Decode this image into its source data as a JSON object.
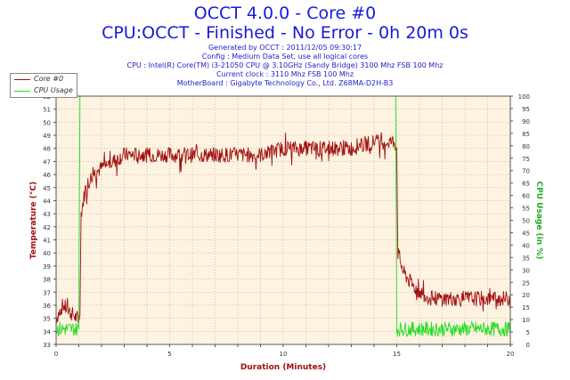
{
  "header": {
    "title": "OCCT 4.0.0 - Core #0",
    "subtitle": "CPU:OCCT - Finished - No Error - 0h 20m 0s",
    "info_lines": [
      "Generated by OCCT : 2011/12/05 09:30:17",
      "Config : Medium Data Set, use all logical cores",
      "CPU : Intel(R) Core(TM) i3-21050 CPU @ 3.10GHz (Sandy Bridge) 3100 Mhz FSB 100 Mhz",
      "Current clock : 3110 Mhz FSB 100 Mhz",
      "MotherBoard : Gigabyte Technology Co., Ltd. Z68MA-D2H-B3"
    ]
  },
  "colors": {
    "temperature": "#a01010",
    "cpu_usage": "#22dd22",
    "plot_bg": "#fdf3e0",
    "grid": "#b0a890",
    "axis_label": "#a01010",
    "usage_label": "#22aa22"
  },
  "chart_data": {
    "type": "line",
    "title": "OCCT 4.0.0 - Core #0",
    "xlabel": "Duration (Minutes)",
    "ylabel": "Temperature (°C)",
    "y2label": "CPU Usage (in %)",
    "xlim": [
      0,
      20
    ],
    "ylim": [
      33,
      52
    ],
    "y2lim": [
      0,
      100
    ],
    "x_ticks": [
      0,
      5,
      10,
      15,
      20
    ],
    "y_ticks": [
      33,
      34,
      35,
      36,
      37,
      38,
      39,
      40,
      41,
      42,
      43,
      44,
      45,
      46,
      47,
      48,
      49,
      50,
      51,
      52
    ],
    "y2_ticks": [
      0,
      5,
      10,
      15,
      20,
      25,
      30,
      35,
      40,
      45,
      50,
      55,
      60,
      65,
      70,
      75,
      80,
      85,
      90,
      95,
      100
    ],
    "legend_position": "top-left",
    "series": [
      {
        "name": "Core #0",
        "axis": "left",
        "x": [
          0,
          0.3,
          0.6,
          0.9,
          1.05,
          1.1,
          1.3,
          1.6,
          2.0,
          2.5,
          3.0,
          3.5,
          4.0,
          5.0,
          6.0,
          7.0,
          8.0,
          9.0,
          10.0,
          11.0,
          12.0,
          13.0,
          14.0,
          14.9,
          15.0,
          15.05,
          15.3,
          15.7,
          16.0,
          16.5,
          17.0,
          18.0,
          19.0,
          20.0
        ],
        "values": [
          35,
          36,
          35.5,
          35,
          35,
          43,
          45,
          46,
          46.5,
          47,
          47.5,
          47.5,
          47.5,
          47.5,
          47.5,
          47.5,
          47.5,
          47.5,
          48,
          48,
          48,
          48,
          48.5,
          48.5,
          48,
          40,
          38.5,
          37.5,
          37,
          36.5,
          36.5,
          36.5,
          36.5,
          36.5
        ]
      },
      {
        "name": "CPU Usage",
        "axis": "right",
        "x": [
          0,
          1.0,
          1.05,
          14.95,
          15.0,
          15.5,
          16.0,
          17.0,
          18.0,
          19.0,
          20.0
        ],
        "values": [
          5,
          5,
          100,
          100,
          5,
          5,
          5,
          5,
          5,
          5,
          5
        ]
      }
    ]
  }
}
